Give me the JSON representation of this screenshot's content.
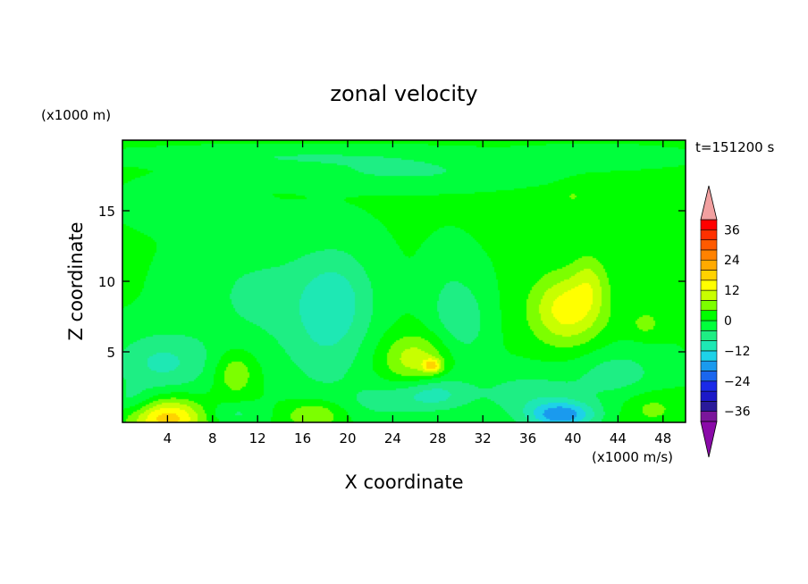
{
  "chart_data": {
    "type": "heatmap",
    "title": "zonal velocity",
    "xlabel": "X coordinate",
    "ylabel": "Z coordinate",
    "x_unit": "(x1000 m/s)",
    "y_unit": "(x1000 m)",
    "time_label": "t=151200 s",
    "xlim": [
      0,
      50
    ],
    "ylim": [
      0,
      20
    ],
    "x_ticks": [
      4,
      8,
      12,
      16,
      20,
      24,
      28,
      32,
      36,
      40,
      44,
      48
    ],
    "y_ticks": [
      5,
      10,
      15
    ],
    "colorbar": {
      "levels": [
        -40,
        -36,
        -32,
        -28,
        -24,
        -20,
        -16,
        -12,
        -8,
        -4,
        0,
        4,
        8,
        12,
        16,
        20,
        24,
        28,
        32,
        36,
        40
      ],
      "tick_values": [
        -36,
        -24,
        -12,
        0,
        12,
        24,
        36
      ],
      "tick_labels": [
        "−36",
        "−24",
        "−12",
        "0",
        "12",
        "24",
        "36"
      ],
      "colors": [
        "#7a169b",
        "#2a1a9a",
        "#1c18c8",
        "#1a2ae8",
        "#1a66ee",
        "#1a9aee",
        "#1ed2e8",
        "#1ee8b4",
        "#1eee84",
        "#00ff3c",
        "#00ff00",
        "#7cff00",
        "#c8ff00",
        "#ffff00",
        "#ffd200",
        "#ffaa00",
        "#ff8200",
        "#ff5a00",
        "#ff3000",
        "#ff0000"
      ],
      "under_color": "#8a0aa8",
      "over_color": "#f2a0a0"
    },
    "features": [
      {
        "x": 4,
        "z": 0.3,
        "sx": 3.2,
        "sz": 1.4,
        "value": 18
      },
      {
        "x": 3.5,
        "z": 4.2,
        "sx": 4.5,
        "sz": 2.2,
        "value": -9
      },
      {
        "x": 1,
        "z": 1.5,
        "sx": 2,
        "sz": 1,
        "value": -5
      },
      {
        "x": 10,
        "z": 3.5,
        "sx": 1.8,
        "sz": 1.6,
        "value": 8
      },
      {
        "x": 10,
        "z": 0.6,
        "sx": 2.5,
        "sz": 0.8,
        "value": -5
      },
      {
        "x": 12,
        "z": 9,
        "sx": 6,
        "sz": 4,
        "value": -5
      },
      {
        "x": 19,
        "z": 9,
        "sx": 3.5,
        "sz": 3.5,
        "value": -8
      },
      {
        "x": 18,
        "z": 5,
        "sx": 4,
        "sz": 4,
        "value": -5
      },
      {
        "x": 17,
        "z": 0.5,
        "sx": 2.5,
        "sz": 1,
        "value": 9
      },
      {
        "x": 23,
        "z": 1.5,
        "sx": 3,
        "sz": 1.3,
        "value": -5
      },
      {
        "x": 26,
        "z": 4.5,
        "sx": 3,
        "sz": 1.8,
        "value": 10
      },
      {
        "x": 27.5,
        "z": 4,
        "sx": 0.8,
        "sz": 0.5,
        "value": 14
      },
      {
        "x": 29,
        "z": 8,
        "sx": 2.2,
        "sz": 3.5,
        "value": -5
      },
      {
        "x": 27.5,
        "z": 2,
        "sx": 3,
        "sz": 1.2,
        "value": -10
      },
      {
        "x": 31,
        "z": 7,
        "sx": 2,
        "sz": 3,
        "value": -4
      },
      {
        "x": 36,
        "z": 2,
        "sx": 5,
        "sz": 1.8,
        "value": -6
      },
      {
        "x": 39,
        "z": 0.5,
        "sx": 3,
        "sz": 1,
        "value": -18
      },
      {
        "x": 39.5,
        "z": 8,
        "sx": 3.2,
        "sz": 2.5,
        "value": 14
      },
      {
        "x": 41.5,
        "z": 10,
        "sx": 1.5,
        "sz": 2,
        "value": 6
      },
      {
        "x": 44,
        "z": 3.5,
        "sx": 4,
        "sz": 1.8,
        "value": -6
      },
      {
        "x": 46.5,
        "z": 7,
        "sx": 1.5,
        "sz": 1,
        "value": 5
      },
      {
        "x": 47,
        "z": 1,
        "sx": 2.5,
        "sz": 1.2,
        "value": 5
      },
      {
        "x": 25,
        "z": 17.8,
        "sx": 9,
        "sz": 1,
        "value": -5
      },
      {
        "x": 15,
        "z": 18.8,
        "sx": 12,
        "sz": 0.6,
        "value": -4
      },
      {
        "x": 42,
        "z": 18.8,
        "sx": 6,
        "sz": 0.6,
        "value": -4
      },
      {
        "x": 40,
        "z": 16,
        "sx": 1,
        "sz": 0.6,
        "value": 4
      },
      {
        "x": 5,
        "z": 15.5,
        "sx": 4,
        "sz": 1.5,
        "value": -3
      }
    ]
  }
}
